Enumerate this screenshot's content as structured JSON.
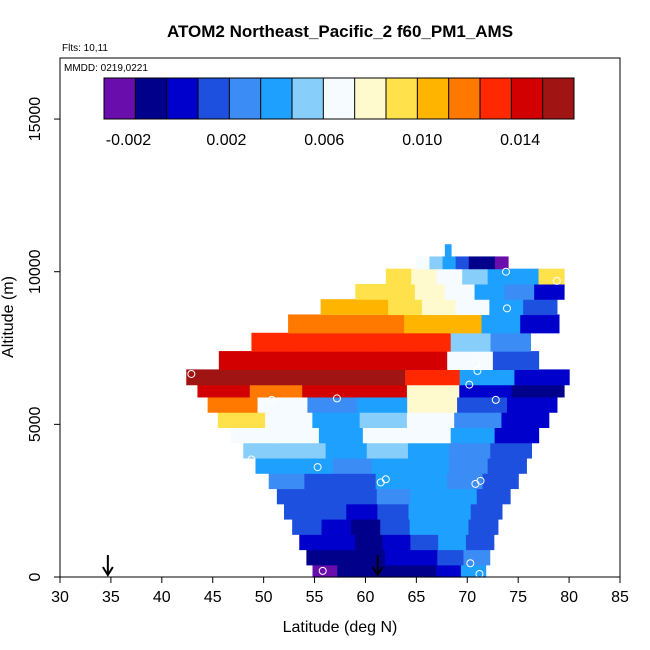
{
  "chart_data": {
    "type": "heatmap",
    "title": "ATOM2 Northeast_Pacific_2 f60_PM1_AMS",
    "flights_label": "Flts: 10,11",
    "dates_label": "MMDD: 0219,0221",
    "xlabel": "Latitude (deg N)",
    "ylabel": "Altitude (m)",
    "xlim": [
      30,
      85
    ],
    "ylim": [
      0,
      17000
    ],
    "x_ticks": [
      "30",
      "35",
      "40",
      "45",
      "50",
      "55",
      "60",
      "65",
      "70",
      "75",
      "80",
      "85"
    ],
    "y_ticks": [
      "0",
      "5000",
      "10000",
      "15000"
    ],
    "colorbar": {
      "ticks": [
        "-0.002",
        "0.002",
        "0.006",
        "0.010",
        "0.014"
      ],
      "range": [
        -0.003,
        0.0162
      ],
      "colors": [
        "#6a0dad",
        "#00008b",
        "#0000cd",
        "#1e50e0",
        "#3c8cf5",
        "#1ea0ff",
        "#87cefa",
        "#f5fbff",
        "#fffacd",
        "#ffe14b",
        "#ffb400",
        "#ff7800",
        "#ff2800",
        "#d20000",
        "#a01414"
      ]
    },
    "arrows_x": [
      34.7,
      61.2
    ],
    "layers": [
      {
        "y0": 0,
        "y1": 400,
        "x0": 54.8,
        "x1": 71.8,
        "values": [
          -0.0025,
          -0.001,
          -0.001,
          -0.0005,
          -0.0005,
          0.0002,
          0.004
        ]
      },
      {
        "y0": 400,
        "y1": 900,
        "x0": 54.2,
        "x1": 72.2,
        "values": [
          -0.0005,
          -0.0005,
          -0.0005,
          0.0,
          0.0,
          0.0015,
          0.003
        ]
      },
      {
        "y0": 900,
        "y1": 1400,
        "x0": 53.5,
        "x1": 72.6,
        "values": [
          0.0,
          0.0,
          -0.0005,
          0.0005,
          0.002,
          0.0045,
          0.002
        ]
      },
      {
        "y0": 1400,
        "y1": 1900,
        "x0": 52.8,
        "x1": 73.0,
        "values": [
          0.001,
          0.0005,
          -0.0005,
          0.001,
          0.0045,
          0.0045,
          0.002
        ]
      },
      {
        "y0": 1900,
        "y1": 2400,
        "x0": 52.0,
        "x1": 73.4,
        "values": [
          0.0015,
          0.001,
          0.0005,
          0.002,
          0.0045,
          0.004,
          0.002
        ]
      },
      {
        "y0": 2400,
        "y1": 2900,
        "x0": 51.3,
        "x1": 74.2,
        "values": [
          0.002,
          0.0015,
          0.001,
          0.003,
          0.004,
          0.0035,
          0.002
        ]
      },
      {
        "y0": 2900,
        "y1": 3400,
        "x0": 50.5,
        "x1": 75.0,
        "values": [
          0.0025,
          0.002,
          0.002,
          0.004,
          0.004,
          0.003,
          0.0015
        ]
      },
      {
        "y0": 3400,
        "y1": 3900,
        "x0": 49.2,
        "x1": 75.8,
        "values": [
          0.0035,
          0.0035,
          0.003,
          0.0045,
          0.004,
          0.003,
          0.001
        ]
      },
      {
        "y0": 3900,
        "y1": 4400,
        "x0": 48.0,
        "x1": 76.3,
        "values": [
          0.005,
          0.0048,
          0.0045,
          0.005,
          0.004,
          0.003,
          0.001
        ]
      },
      {
        "y0": 4400,
        "y1": 4900,
        "x0": 46.8,
        "x1": 77.0,
        "values": [
          0.007,
          0.006,
          0.0045,
          0.007,
          0.006,
          0.0035,
          0.0005
        ]
      },
      {
        "y0": 4900,
        "y1": 5400,
        "x0": 45.5,
        "x1": 78.0,
        "values": [
          0.009,
          0.006,
          0.004,
          0.005,
          0.007,
          0.003,
          0.0005
        ]
      },
      {
        "y0": 5400,
        "y1": 5900,
        "x0": 44.5,
        "x1": 78.8,
        "values": [
          0.012,
          0.007,
          0.003,
          0.004,
          0.0075,
          0.002,
          0.0
        ]
      },
      {
        "y0": 5900,
        "y1": 6300,
        "x0": 43.5,
        "x1": 79.5,
        "values": [
          0.014,
          0.012,
          0.014,
          0.0145,
          0.008,
          0.0005,
          -0.001
        ]
      },
      {
        "y0": 6300,
        "y1": 6800,
        "x0": 42.4,
        "x1": 80.0,
        "values": [
          0.0158,
          0.0158,
          0.0158,
          0.0155,
          0.013,
          0.0045,
          0.0
        ]
      },
      {
        "y0": 6800,
        "y1": 7400,
        "x0": 45.6,
        "x1": 77.0,
        "values": [
          0.0145,
          0.0145,
          0.0145,
          0.0145,
          0.014,
          0.006,
          0.002
        ]
      },
      {
        "y0": 7400,
        "y1": 8000,
        "x0": 48.8,
        "x1": 76.2,
        "values": [
          0.0135,
          0.0135,
          0.0135,
          0.013,
          0.0125,
          0.0055,
          0.0025
        ]
      },
      {
        "y0": 8000,
        "y1": 8600,
        "x0": 52.4,
        "x1": 79.0,
        "values": [
          0.012,
          0.012,
          0.0115,
          0.011,
          0.01,
          0.0045,
          0.0
        ]
      },
      {
        "y0": 8600,
        "y1": 9100,
        "x0": 55.6,
        "x1": 78.8,
        "values": [
          0.011,
          0.0105,
          0.0095,
          0.0085,
          0.0065,
          0.0045,
          0.002
        ]
      },
      {
        "y0": 9100,
        "y1": 9600,
        "x0": 59.0,
        "x1": 79.5,
        "values": [
          0.0095,
          0.0095,
          0.0085,
          0.007,
          0.0045,
          0.003,
          0.0
        ]
      },
      {
        "y0": 9600,
        "y1": 10100,
        "x0": 62.0,
        "x1": 79.5,
        "values": [
          0.009,
          0.0085,
          0.007,
          0.005,
          0.004,
          0.004,
          0.009
        ]
      },
      {
        "y0": 10100,
        "y1": 10500,
        "x0": 65.0,
        "x1": 74.0,
        "values": [
          0.006,
          0.005,
          0.004,
          0.002,
          -0.0005,
          -0.001,
          -0.0025
        ]
      },
      {
        "y0": 10500,
        "y1": 10900,
        "x0": 67.8,
        "x1": 68.4,
        "values": [
          0.004
        ]
      }
    ],
    "points": [
      {
        "x": 55.8,
        "y": 200
      },
      {
        "x": 70.3,
        "y": 450
      },
      {
        "x": 71.2,
        "y": 100
      },
      {
        "x": 61.5,
        "y": 3100
      },
      {
        "x": 62.0,
        "y": 3200
      },
      {
        "x": 70.8,
        "y": 3050
      },
      {
        "x": 71.3,
        "y": 3150
      },
      {
        "x": 55.3,
        "y": 3600
      },
      {
        "x": 48.8,
        "y": 3850
      },
      {
        "x": 50.8,
        "y": 5800
      },
      {
        "x": 57.2,
        "y": 5850
      },
      {
        "x": 70.2,
        "y": 6300
      },
      {
        "x": 72.8,
        "y": 5800
      },
      {
        "x": 42.9,
        "y": 6650
      },
      {
        "x": 71.0,
        "y": 6750
      },
      {
        "x": 70.9,
        "y": 7000
      },
      {
        "x": 79.6,
        "y": 6950
      },
      {
        "x": 73.9,
        "y": 8800
      },
      {
        "x": 73.8,
        "y": 10000
      },
      {
        "x": 78.8,
        "y": 9700
      }
    ]
  }
}
